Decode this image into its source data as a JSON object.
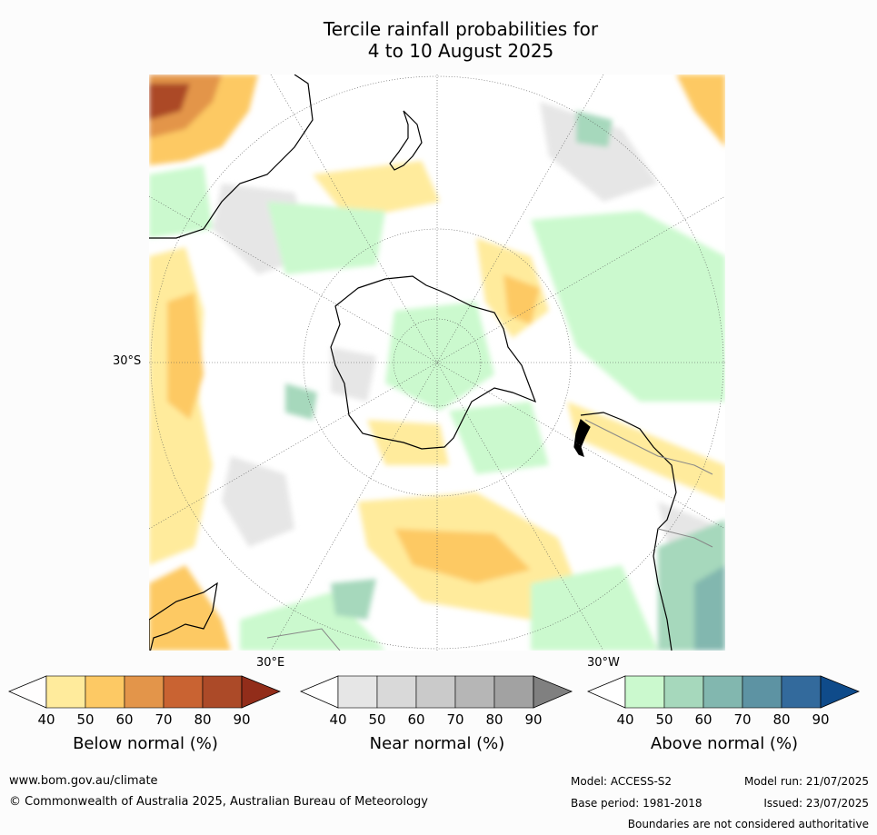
{
  "title": {
    "line1": "Tercile rainfall probabilities for",
    "line2": "4 to 10 August 2025"
  },
  "map": {
    "lat_label": "30°S",
    "lon_labels": {
      "east": "30°E",
      "west": "30°W"
    },
    "projection": "south polar stereographic",
    "colors": {
      "coast": "#000000",
      "border": "#888888",
      "grid": "#555555"
    }
  },
  "colorbars": [
    {
      "id": "below",
      "title": "Below normal (%)",
      "ticks": [
        "40",
        "50",
        "60",
        "70",
        "80",
        "90"
      ],
      "colors": [
        "#fffefe",
        "#ffeb9c",
        "#fdc964",
        "#e3954a",
        "#c96332",
        "#ac4a28",
        "#922d1a"
      ]
    },
    {
      "id": "near",
      "title": "Near normal (%)",
      "ticks": [
        "40",
        "50",
        "60",
        "70",
        "80",
        "90"
      ],
      "colors": [
        "#ffffff",
        "#e6e6e6",
        "#d9d9d9",
        "#cacaca",
        "#b6b6b6",
        "#a2a2a2",
        "#808080"
      ]
    },
    {
      "id": "above",
      "title": "Above normal (%)",
      "ticks": [
        "40",
        "50",
        "60",
        "70",
        "80",
        "90"
      ],
      "colors": [
        "#ffffff",
        "#cbf9ce",
        "#a6d8bc",
        "#82b7af",
        "#5d93a3",
        "#336a9c",
        "#0f4b8a"
      ]
    }
  ],
  "footer": {
    "website": "www.bom.gov.au/climate",
    "copyright": "© Commonwealth of Australia 2025, Australian Bureau of Meteorology",
    "model": "Model: ACCESS-S2",
    "model_run": "Model run: 21/07/2025",
    "base_period": "Base period: 1981-2018",
    "issued": "Issued: 23/07/2025",
    "disclaimer": "Boundaries are not considered authoritative"
  }
}
